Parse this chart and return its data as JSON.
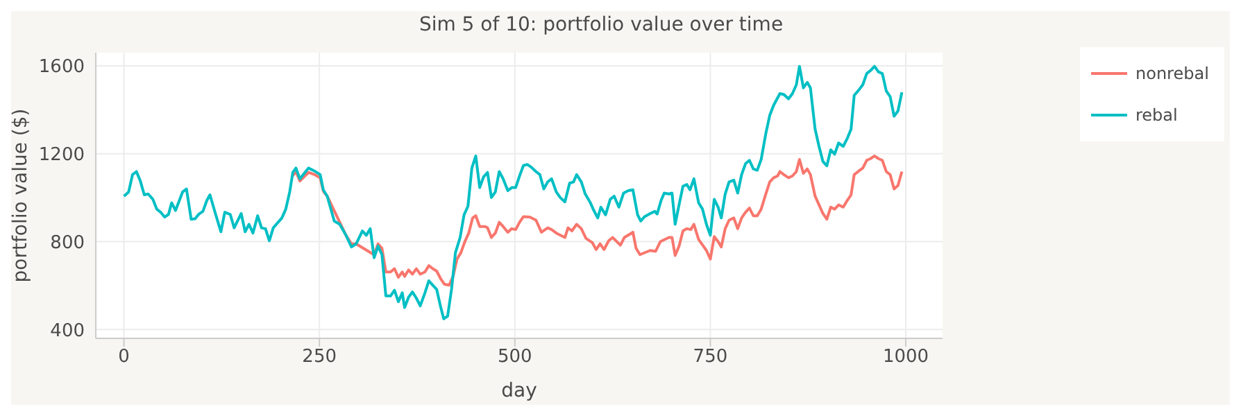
{
  "chart_data": {
    "type": "line",
    "title": "Sim 5 of 10: portfolio value over time",
    "xlabel": "day",
    "ylabel": "portfolio value ($)",
    "xlim": [
      -36,
      1047
    ],
    "ylim": [
      360,
      1660
    ],
    "xticks": [
      0,
      250,
      500,
      750,
      1000
    ],
    "yticks": [
      400,
      800,
      1200,
      1600
    ],
    "grid": true,
    "legend": "top right",
    "marker": "none",
    "line_style": "solid",
    "series": [
      {
        "name": "nonrebal",
        "color": "#f8766d",
        "x": [
          216,
          220,
          225,
          236,
          244,
          251,
          255,
          260,
          284,
          291,
          297,
          320,
          325,
          330,
          335,
          341,
          346,
          351,
          356,
          359,
          364,
          369,
          374,
          379,
          385,
          390,
          395,
          400,
          405,
          410,
          416,
          421,
          426,
          431,
          436,
          441,
          446,
          450,
          455,
          462,
          465,
          470,
          475,
          480,
          485,
          491,
          496,
          501,
          506,
          511,
          519,
          527,
          534,
          542,
          547,
          553,
          564,
          568,
          573,
          579,
          585,
          591,
          599,
          604,
          609,
          614,
          620,
          625,
          635,
          640,
          651,
          655,
          660,
          673,
          680,
          686,
          697,
          701,
          705,
          710,
          715,
          720,
          725,
          729,
          735,
          741,
          745,
          750,
          755,
          760,
          764,
          769,
          774,
          780,
          785,
          790,
          795,
          800,
          805,
          810,
          815,
          821,
          826,
          831,
          836,
          839,
          844,
          850,
          855,
          860,
          864,
          869,
          874,
          878,
          884,
          889,
          894,
          899,
          904,
          909,
          914,
          920,
          925,
          930,
          934,
          939,
          945,
          950,
          955,
          960,
          965,
          970,
          975,
          980,
          985,
          990,
          995
        ],
        "values": [
          1100,
          1120,
          1076,
          1115,
          1105,
          1090,
          1030,
          1007,
          829,
          790,
          790,
          740,
          790,
          770,
          662,
          662,
          677,
          638,
          662,
          642,
          671,
          652,
          677,
          652,
          662,
          691,
          677,
          666,
          632,
          606,
          602,
          642,
          721,
          750,
          800,
          839,
          908,
          918,
          869,
          869,
          863,
          819,
          839,
          888,
          869,
          843,
          859,
          855,
          888,
          914,
          912,
          898,
          843,
          863,
          855,
          839,
          819,
          863,
          849,
          879,
          859,
          815,
          796,
          764,
          790,
          764,
          804,
          819,
          784,
          819,
          843,
          770,
          741,
          760,
          756,
          800,
          819,
          819,
          737,
          780,
          849,
          859,
          855,
          879,
          810,
          780,
          760,
          721,
          823,
          800,
          776,
          859,
          898,
          908,
          859,
          908,
          934,
          953,
          918,
          918,
          948,
          1017,
          1072,
          1091,
          1099,
          1119,
          1105,
          1091,
          1099,
          1119,
          1174,
          1111,
          1131,
          1105,
          1007,
          968,
          928,
          902,
          957,
          948,
          967,
          957,
          987,
          1013,
          1105,
          1119,
          1135,
          1170,
          1178,
          1190,
          1178,
          1170,
          1119,
          1105,
          1040,
          1056,
          1119
        ]
      },
      {
        "name": "rebal",
        "color": "#00bfc4",
        "x": [
          0,
          6,
          11,
          16,
          21,
          26,
          31,
          37,
          42,
          47,
          52,
          57,
          61,
          66,
          75,
          80,
          86,
          91,
          96,
          101,
          106,
          110,
          117,
          124,
          129,
          136,
          141,
          150,
          155,
          160,
          165,
          171,
          176,
          181,
          186,
          191,
          202,
          207,
          212,
          216,
          220,
          225,
          236,
          244,
          251,
          255,
          260,
          269,
          276,
          284,
          291,
          297,
          305,
          310,
          315,
          320,
          325,
          330,
          335,
          341,
          346,
          351,
          356,
          359,
          364,
          369,
          374,
          379,
          385,
          390,
          395,
          400,
          405,
          409,
          414,
          419,
          424,
          430,
          435,
          440,
          445,
          450,
          455,
          460,
          465,
          470,
          475,
          480,
          485,
          491,
          496,
          501,
          506,
          511,
          516,
          521,
          527,
          532,
          537,
          542,
          547,
          553,
          558,
          564,
          570,
          575,
          579,
          585,
          590,
          596,
          601,
          606,
          610,
          616,
          622,
          627,
          633,
          639,
          645,
          651,
          657,
          661,
          666,
          673,
          679,
          682,
          687,
          691,
          697,
          701,
          705,
          710,
          715,
          720,
          724,
          729,
          735,
          740,
          745,
          750,
          755,
          760,
          764,
          769,
          774,
          780,
          785,
          790,
          795,
          800,
          805,
          810,
          815,
          821,
          826,
          831,
          836,
          839,
          844,
          850,
          855,
          860,
          864,
          869,
          874,
          878,
          884,
          889,
          894,
          899,
          904,
          909,
          914,
          920,
          925,
          930,
          934,
          939,
          945,
          950,
          955,
          960,
          965,
          970,
          975,
          980,
          985,
          990,
          995
        ],
        "values": [
          1007,
          1026,
          1105,
          1119,
          1076,
          1013,
          1017,
          993,
          948,
          934,
          912,
          924,
          977,
          942,
          1026,
          1040,
          902,
          904,
          926,
          938,
          987,
          1013,
          928,
          845,
          934,
          924,
          863,
          928,
          845,
          879,
          839,
          918,
          863,
          859,
          804,
          863,
          908,
          948,
          1026,
          1115,
          1135,
          1086,
          1135,
          1121,
          1105,
          1036,
          1007,
          894,
          879,
          829,
          776,
          790,
          849,
          829,
          859,
          727,
          780,
          741,
          553,
          553,
          579,
          527,
          567,
          500,
          547,
          571,
          543,
          508,
          567,
          622,
          602,
          583,
          504,
          449,
          461,
          583,
          750,
          819,
          922,
          961,
          1135,
          1190,
          1046,
          1095,
          1115,
          1001,
          1026,
          1119,
          1086,
          1032,
          1046,
          1046,
          1099,
          1147,
          1151,
          1139,
          1119,
          1105,
          1040,
          1072,
          1086,
          1026,
          1001,
          981,
          1066,
          1072,
          1105,
          1072,
          1017,
          981,
          942,
          908,
          957,
          922,
          993,
          1007,
          957,
          1021,
          1032,
          1036,
          922,
          894,
          914,
          928,
          938,
          926,
          987,
          1021,
          1017,
          1021,
          879,
          968,
          1052,
          1060,
          1036,
          1086,
          977,
          948,
          879,
          829,
          993,
          957,
          908,
          1017,
          1072,
          1080,
          1021,
          1105,
          1155,
          1170,
          1131,
          1125,
          1174,
          1293,
          1375,
          1421,
          1454,
          1474,
          1470,
          1450,
          1474,
          1514,
          1598,
          1500,
          1525,
          1500,
          1312,
          1234,
          1165,
          1145,
          1218,
          1198,
          1249,
          1234,
          1269,
          1312,
          1466,
          1486,
          1514,
          1565,
          1579,
          1598,
          1573,
          1565,
          1486,
          1460,
          1371,
          1395,
          1480
        ]
      }
    ]
  }
}
